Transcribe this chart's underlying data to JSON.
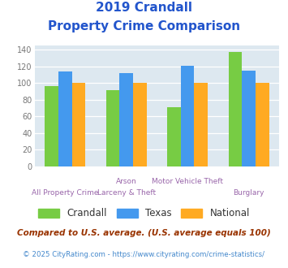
{
  "title_line1": "2019 Crandall",
  "title_line2": "Property Crime Comparison",
  "cat_labels_row1": [
    "",
    "Arson",
    "",
    ""
  ],
  "cat_labels_row2": [
    "All Property Crime",
    "Larceny & Theft",
    "Motor Vehicle Theft",
    "Burglary"
  ],
  "crandall": [
    96,
    91,
    71,
    137
  ],
  "texas": [
    114,
    112,
    121,
    115
  ],
  "national": [
    100,
    100,
    100,
    100
  ],
  "colors": {
    "crandall": "#77cc44",
    "texas": "#4499ee",
    "national": "#ffaa22"
  },
  "ylim": [
    0,
    145
  ],
  "yticks": [
    0,
    20,
    40,
    60,
    80,
    100,
    120,
    140
  ],
  "legend_labels": [
    "Crandall",
    "Texas",
    "National"
  ],
  "footnote1": "Compared to U.S. average. (U.S. average equals 100)",
  "footnote2": "© 2025 CityRating.com - https://www.cityrating.com/crime-statistics/",
  "title_color": "#2255cc",
  "footnote1_color": "#993300",
  "footnote2_color": "#4488cc",
  "bg_color": "#dde8f0",
  "grid_color": "#ffffff",
  "label_color_row1": "#9966aa",
  "label_color_row2": "#9966aa"
}
